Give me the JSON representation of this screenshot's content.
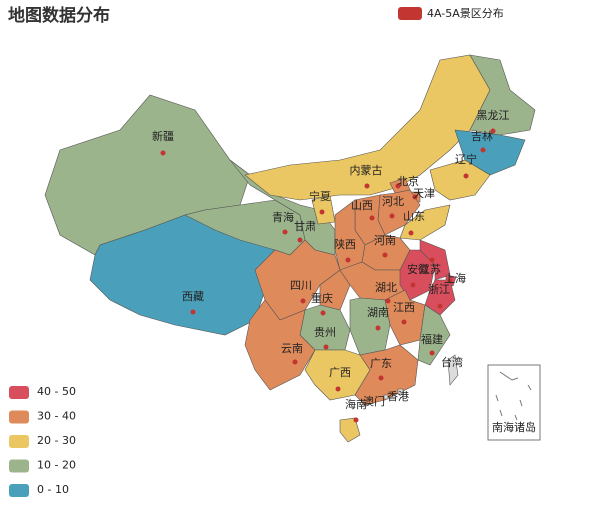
{
  "chart_data": {
    "type": "map",
    "title": "地图数据分布",
    "series": [
      {
        "name": "4A-5A景区分布",
        "color": "#c23531",
        "regions": [
          "新疆",
          "西藏",
          "青海",
          "甘肃",
          "宁夏",
          "内蒙古",
          "黑龙江",
          "吉林",
          "辽宁",
          "北京",
          "天津",
          "河北",
          "山西",
          "山东",
          "陕西",
          "河南",
          "四川",
          "重庆",
          "湖北",
          "安徽",
          "江苏",
          "上海",
          "浙江",
          "江西",
          "湖南",
          "福建",
          "贵州",
          "云南",
          "广西",
          "广东",
          "海南",
          "香港",
          "澳门",
          "台湾"
        ],
        "values": [
          15,
          5,
          15,
          15,
          25,
          25,
          15,
          5,
          25,
          35,
          35,
          35,
          35,
          25,
          35,
          35,
          35,
          35,
          35,
          45,
          45,
          45,
          45,
          35,
          15,
          15,
          15,
          35,
          25,
          35,
          25,
          null,
          null,
          null
        ]
      }
    ],
    "visual_map": {
      "pieces": [
        {
          "min": 40,
          "max": 50,
          "label": "40 - 50",
          "color": "#d94e5d"
        },
        {
          "min": 30,
          "max": 40,
          "label": "30 - 40",
          "color": "#df8a5a"
        },
        {
          "min": 20,
          "max": 30,
          "label": "20 - 30",
          "color": "#eac763"
        },
        {
          "min": 10,
          "max": 20,
          "label": "10 - 20",
          "color": "#9cb48c"
        },
        {
          "min": 0,
          "max": 10,
          "label": "0 - 10",
          "color": "#4aa0ba"
        }
      ]
    },
    "inset_label": "南海诸岛"
  }
}
